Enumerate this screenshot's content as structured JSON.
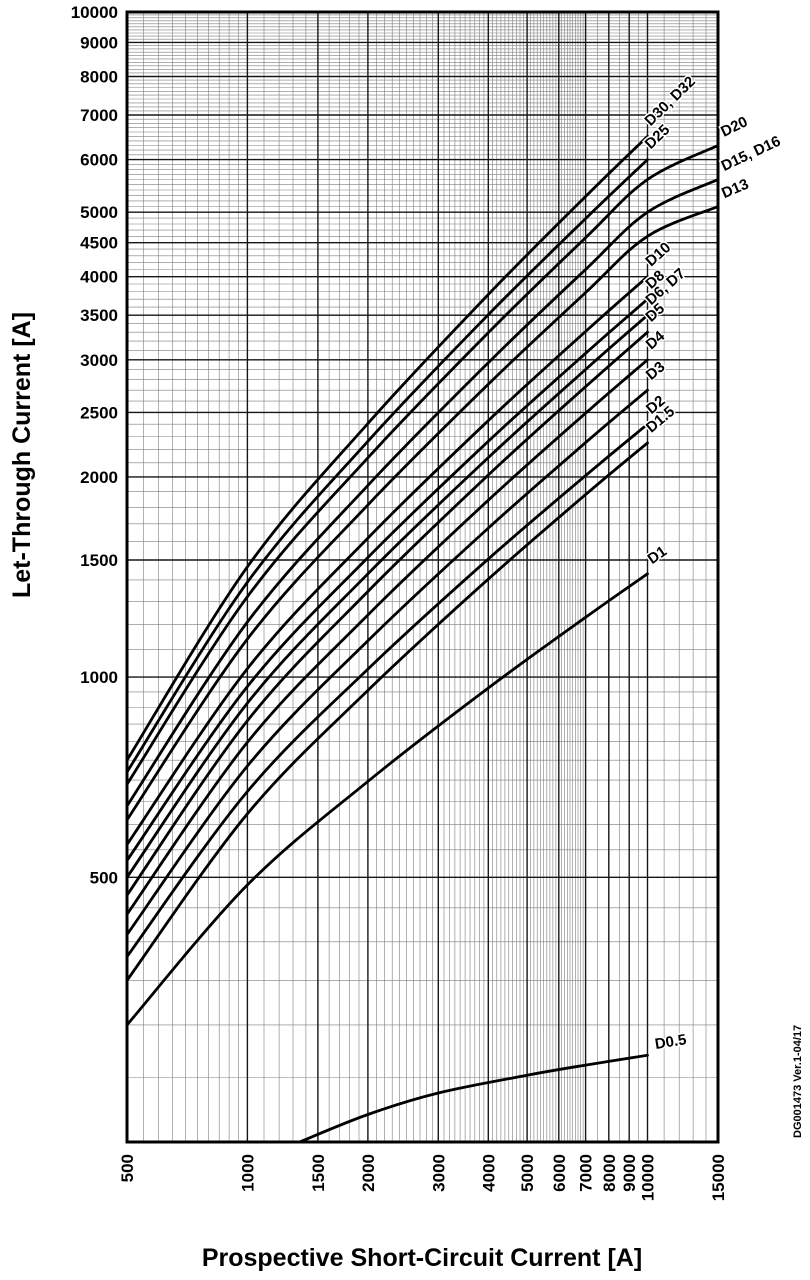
{
  "doc_ref": "DG001473  Ver.1-04/17",
  "axes": {
    "x": {
      "title": "Prospective Short-Circuit Current [A]",
      "min": 500,
      "max": 15000,
      "major_ticks": [
        500,
        1000,
        1500,
        2000,
        3000,
        4000,
        5000,
        6000,
        7000,
        8000,
        9000,
        10000,
        15000
      ]
    },
    "y": {
      "title": "Let-Through Current [A]",
      "min": 200,
      "max": 10000,
      "major_ticks": [
        500,
        1000,
        1500,
        2000,
        2500,
        3000,
        3500,
        4000,
        4500,
        5000,
        6000,
        7000,
        8000,
        9000,
        10000
      ]
    }
  },
  "chart_data": {
    "type": "line",
    "x_scale": "log",
    "y_scale": "log",
    "title": "",
    "xlabel": "Prospective Short-Circuit Current [A]",
    "ylabel": "Let-Through Current [A]",
    "xlim": [
      500,
      15000
    ],
    "ylim": [
      200,
      10000
    ],
    "grid": "on",
    "legend_position": "curve-end-labels",
    "series": [
      {
        "name": "D30, D32",
        "points": [
          [
            500,
            750
          ],
          [
            1000,
            1465
          ],
          [
            2000,
            2406
          ],
          [
            4000,
            3760
          ],
          [
            7000,
            5280
          ],
          [
            10000,
            6500
          ]
        ]
      },
      {
        "name": "D25",
        "points": [
          [
            500,
            720
          ],
          [
            1000,
            1389
          ],
          [
            2000,
            2262
          ],
          [
            4000,
            3506
          ],
          [
            7000,
            4890
          ],
          [
            10000,
            6000
          ]
        ]
      },
      {
        "name": "D20",
        "points": [
          [
            500,
            690
          ],
          [
            1000,
            1321
          ],
          [
            2000,
            2137
          ],
          [
            4000,
            3295
          ],
          [
            7000,
            4578
          ],
          [
            10000,
            5600
          ],
          [
            15000,
            6300
          ]
        ]
      },
      {
        "name": "D15, D16",
        "points": [
          [
            500,
            640
          ],
          [
            1000,
            1210
          ],
          [
            2000,
            1942
          ],
          [
            4000,
            2970
          ],
          [
            7000,
            4101
          ],
          [
            10000,
            5000
          ],
          [
            15000,
            5600
          ]
        ]
      },
      {
        "name": "D13",
        "points": [
          [
            500,
            610
          ],
          [
            1000,
            1141
          ],
          [
            2000,
            1815
          ],
          [
            4000,
            2757
          ],
          [
            7000,
            3786
          ],
          [
            10000,
            4600
          ],
          [
            15000,
            5100
          ]
        ]
      },
      {
        "name": "D10",
        "points": [
          [
            500,
            560
          ],
          [
            1000,
            1030
          ],
          [
            2000,
            1618
          ],
          [
            4000,
            2430
          ],
          [
            7000,
            3309
          ],
          [
            10000,
            4000
          ]
        ]
      },
      {
        "name": "D8",
        "points": [
          [
            500,
            530
          ],
          [
            1000,
            968
          ],
          [
            2000,
            1513
          ],
          [
            4000,
            2262
          ],
          [
            7000,
            3068
          ],
          [
            10000,
            3700
          ]
        ]
      },
      {
        "name": "D6, D7",
        "points": [
          [
            500,
            500
          ],
          [
            1000,
            914
          ],
          [
            2000,
            1430
          ],
          [
            4000,
            2138
          ],
          [
            7000,
            2901
          ],
          [
            10000,
            3500
          ]
        ]
      },
      {
        "name": "D5",
        "points": [
          [
            500,
            470
          ],
          [
            1000,
            860
          ],
          [
            2000,
            1345
          ],
          [
            4000,
            2013
          ],
          [
            7000,
            2733
          ],
          [
            10000,
            3300
          ]
        ]
      },
      {
        "name": "D4",
        "points": [
          [
            500,
            440
          ],
          [
            1000,
            798
          ],
          [
            2000,
            1240
          ],
          [
            4000,
            1845
          ],
          [
            7000,
            2493
          ],
          [
            10000,
            3000
          ]
        ]
      },
      {
        "name": "D3",
        "points": [
          [
            500,
            410
          ],
          [
            1000,
            735
          ],
          [
            2000,
            1134
          ],
          [
            4000,
            1675
          ],
          [
            7000,
            2252
          ],
          [
            10000,
            2700
          ]
        ]
      },
      {
        "name": "D2",
        "points": [
          [
            500,
            380
          ],
          [
            1000,
            673
          ],
          [
            2000,
            1028
          ],
          [
            4000,
            1505
          ],
          [
            7000,
            2009
          ],
          [
            10000,
            2400
          ]
        ]
      },
      {
        "name": "D1.5",
        "points": [
          [
            500,
            350
          ],
          [
            1000,
            623
          ],
          [
            2000,
            955
          ],
          [
            4000,
            1404
          ],
          [
            7000,
            1881
          ],
          [
            10000,
            2250
          ]
        ]
      },
      {
        "name": "D1",
        "points": [
          [
            500,
            300
          ],
          [
            1000,
            487
          ],
          [
            2000,
            697
          ],
          [
            4000,
            963
          ],
          [
            7000,
            1230
          ],
          [
            10000,
            1430
          ]
        ]
      },
      {
        "name": "D0.5",
        "points": [
          [
            1350,
            200
          ],
          [
            2000,
            220
          ],
          [
            3000,
            237
          ],
          [
            5000,
            252
          ],
          [
            7000,
            261
          ],
          [
            10000,
            270
          ]
        ]
      }
    ]
  },
  "colors": {
    "curve": "#000000",
    "grid_minor": "#7e7e7e",
    "grid_major": "#161616",
    "frame": "#000000",
    "text": "#000000",
    "background": "#ffffff"
  }
}
